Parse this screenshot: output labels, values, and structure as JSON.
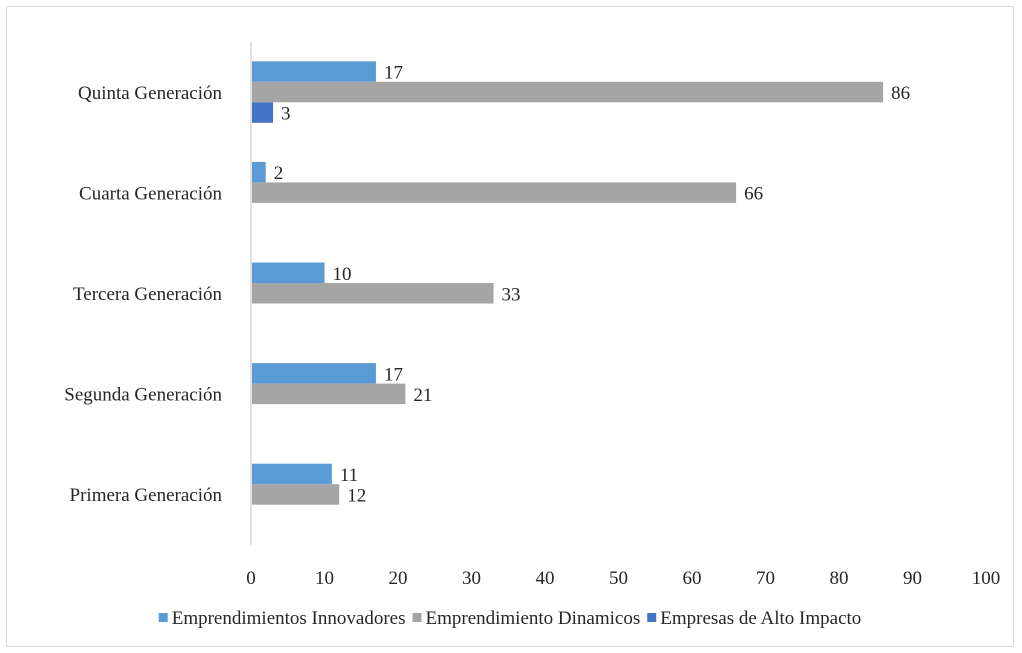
{
  "chart_data": {
    "type": "bar",
    "orientation": "horizontal",
    "categories": [
      "Primera Generación",
      "Segunda Generación",
      "Tercera Generación",
      "Cuarta Generación",
      "Quinta Generación"
    ],
    "series": [
      {
        "name": "Emprendimientos Innovadores",
        "color": "#5b9bd5",
        "values": [
          11,
          17,
          10,
          2,
          17
        ]
      },
      {
        "name": "Emprendimiento Dinamicos",
        "color": "#a5a5a5",
        "values": [
          12,
          21,
          33,
          66,
          86
        ]
      },
      {
        "name": "Empresas de Alto Impacto",
        "color": "#4472c4",
        "values": [
          null,
          null,
          null,
          null,
          3
        ]
      }
    ],
    "xlim": [
      0,
      100
    ],
    "xticks": [
      "0",
      "10",
      "20",
      "30",
      "40",
      "50",
      "60",
      "70",
      "80",
      "90",
      "100"
    ],
    "grid": false,
    "legend_position": "bottom",
    "data_labels": true
  }
}
